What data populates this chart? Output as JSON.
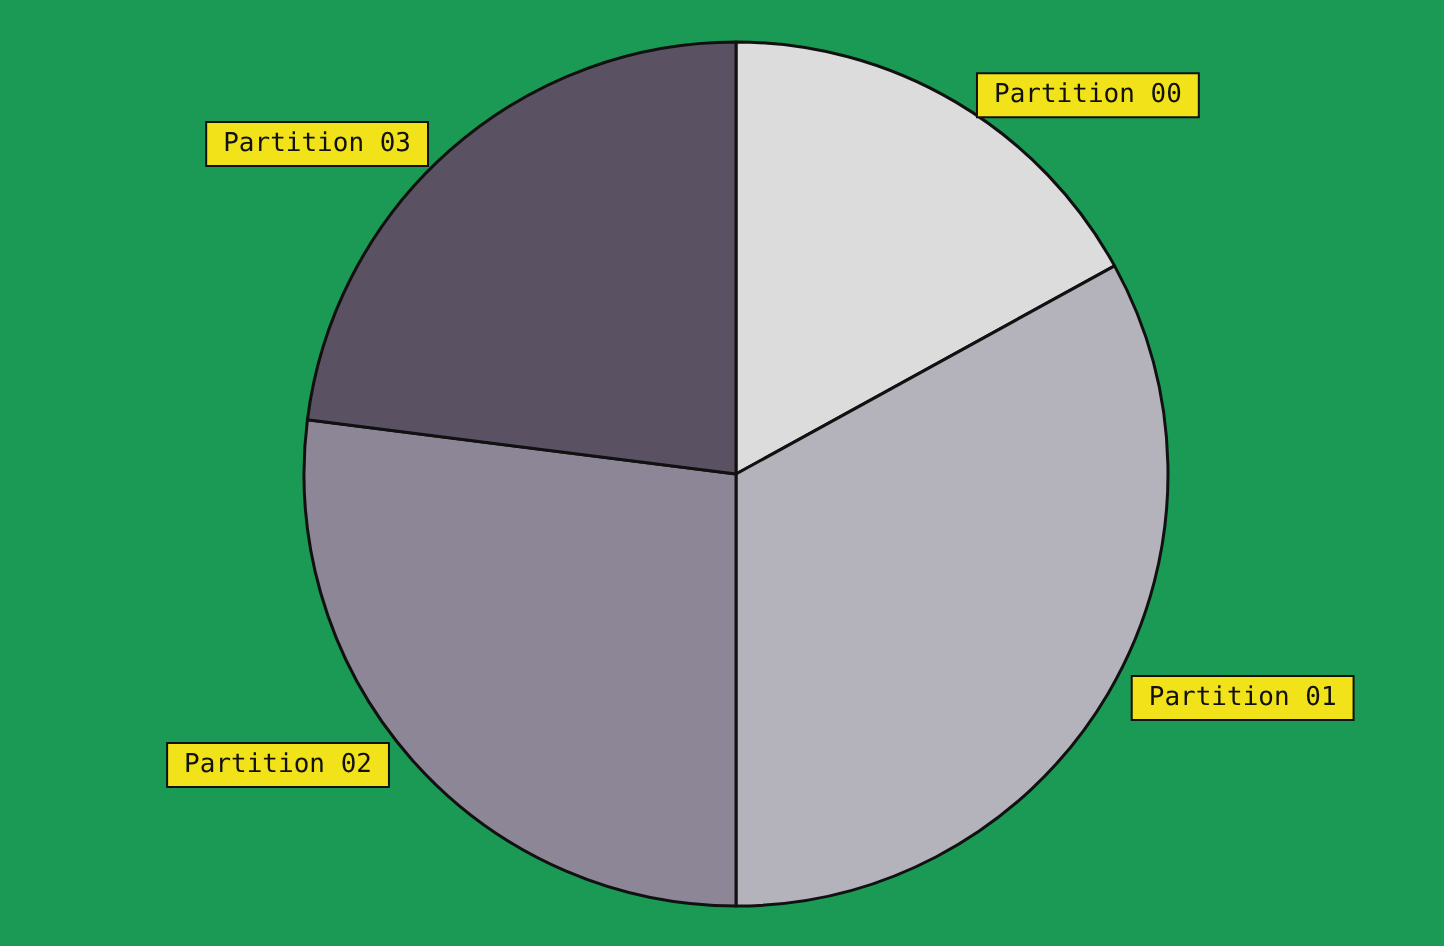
{
  "chart_data": {
    "type": "pie",
    "categories": [
      "Partition 00",
      "Partition 01",
      "Partition 02",
      "Partition 03"
    ],
    "values": [
      17,
      33,
      27,
      23
    ],
    "colors": [
      "#dcdcdc",
      "#b4b2ba",
      "#8c8696",
      "#5a5262"
    ],
    "legend": false
  }
}
